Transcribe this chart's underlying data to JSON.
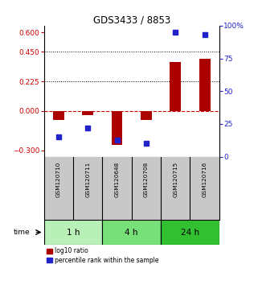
{
  "title": "GDS3433 / 8853",
  "samples": [
    "GSM120710",
    "GSM120711",
    "GSM120648",
    "GSM120708",
    "GSM120715",
    "GSM120716"
  ],
  "log10_ratio": [
    -0.07,
    -0.03,
    -0.26,
    -0.07,
    0.37,
    0.4
  ],
  "percentile_rank": [
    15,
    22,
    13,
    10,
    95,
    93
  ],
  "groups": [
    {
      "label": "1 h",
      "samples": [
        0,
        1
      ],
      "color": "#b8f0b8"
    },
    {
      "label": "4 h",
      "samples": [
        2,
        3
      ],
      "color": "#78e078"
    },
    {
      "label": "24 h",
      "samples": [
        4,
        5
      ],
      "color": "#30c030"
    }
  ],
  "bar_color_red": "#aa0000",
  "dot_color_blue": "#2222cc",
  "ylim_left": [
    -0.35,
    0.65
  ],
  "ylim_right": [
    0,
    100
  ],
  "yticks_left": [
    -0.3,
    0,
    0.225,
    0.45,
    0.6
  ],
  "yticks_right": [
    0,
    25,
    50,
    75,
    100
  ],
  "hlines": [
    0.225,
    0.45
  ],
  "left_tick_color": "#cc0000",
  "right_tick_color": "#2222cc",
  "bg_color": "#ffffff",
  "label_area_color": "#c8c8c8",
  "zero_line_color": "#cc0000",
  "legend_red_label": "log10 ratio",
  "legend_blue_label": "percentile rank within the sample"
}
